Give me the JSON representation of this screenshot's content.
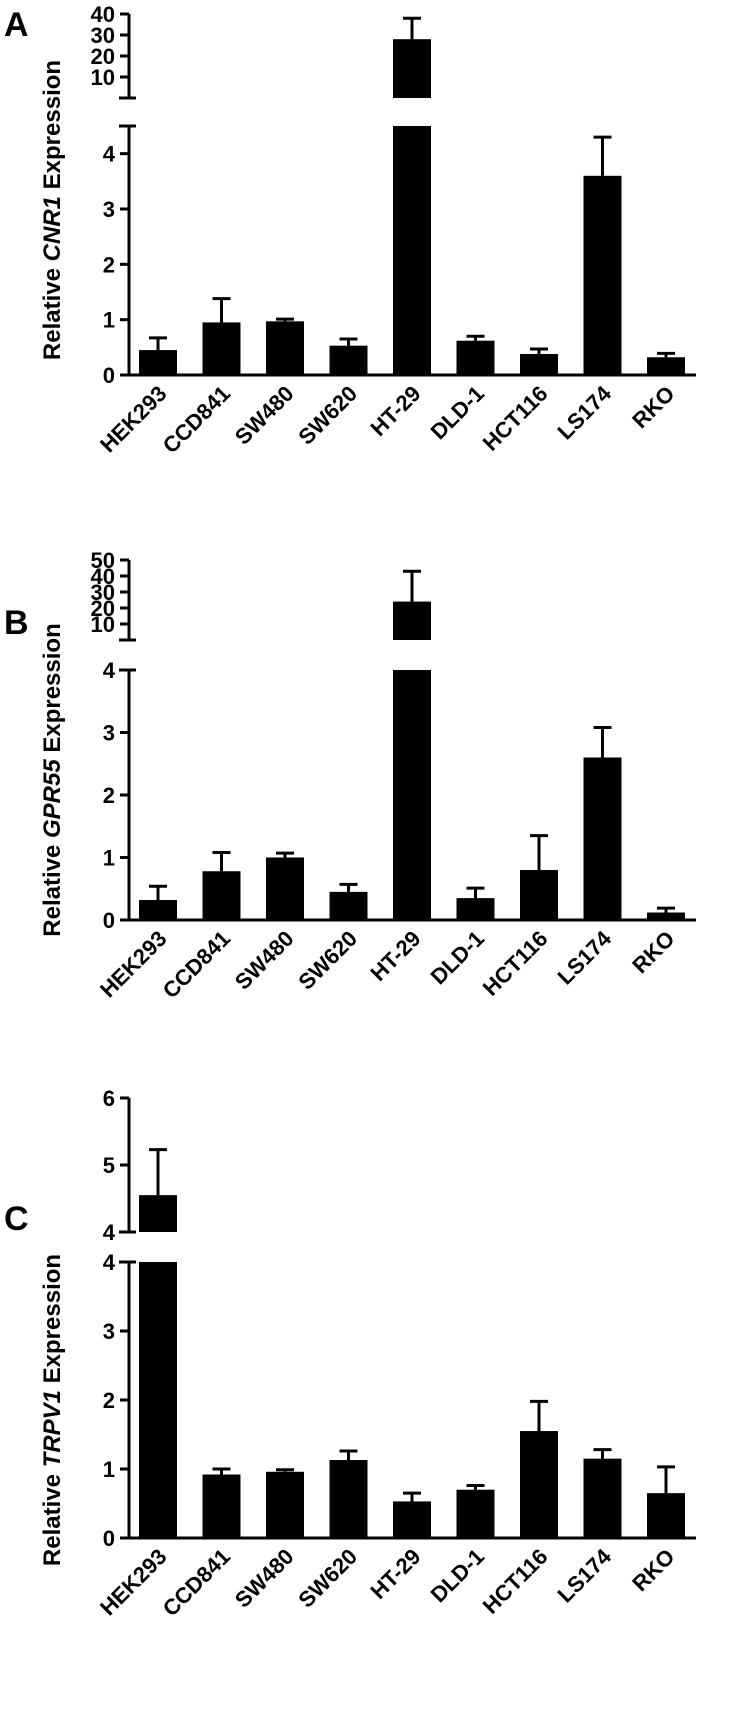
{
  "panels": [
    {
      "letter": "A",
      "ylabel": {
        "prefix": "Relative ",
        "gene": "CNR1",
        "suffix": " Expression"
      },
      "chart_data": {
        "type": "bar",
        "categories": [
          "HEK293",
          "CCD841",
          "SW480",
          "SW620",
          "HT-29",
          "DLD-1",
          "HCT116",
          "LS174",
          "RKO"
        ],
        "values": [
          0.45,
          0.95,
          0.97,
          0.53,
          28,
          0.62,
          0.38,
          3.6,
          0.32
        ],
        "errors": [
          0.22,
          0.43,
          0.04,
          0.12,
          10,
          0.08,
          0.09,
          0.7,
          0.07
        ],
        "axis_break": true,
        "ylim_lower": [
          0,
          4.5
        ],
        "yticks_lower": [
          "0",
          "1",
          "2",
          "3",
          "4"
        ],
        "ylim_upper": [
          0,
          40
        ],
        "yticks_upper": [
          "10",
          "20",
          "30",
          "40"
        ]
      }
    },
    {
      "letter": "B",
      "ylabel": {
        "prefix": "Relative ",
        "gene": "GPR55",
        "suffix": " Expression"
      },
      "chart_data": {
        "type": "bar",
        "categories": [
          "HEK293",
          "CCD841",
          "SW480",
          "SW620",
          "HT-29",
          "DLD-1",
          "HCT116",
          "LS174",
          "RKO"
        ],
        "values": [
          0.32,
          0.78,
          1.0,
          0.45,
          24,
          0.35,
          0.8,
          2.6,
          0.12
        ],
        "errors": [
          0.22,
          0.3,
          0.07,
          0.12,
          19,
          0.16,
          0.55,
          0.48,
          0.07
        ],
        "axis_break": true,
        "ylim_lower": [
          0,
          4
        ],
        "yticks_lower": [
          "0",
          "1",
          "2",
          "3",
          "4"
        ],
        "ylim_upper": [
          0,
          50
        ],
        "yticks_upper": [
          "10",
          "20",
          "30",
          "40",
          "50"
        ]
      }
    },
    {
      "letter": "C",
      "ylabel": {
        "prefix": "Relative ",
        "gene": "TRPV1",
        "suffix": " Expression"
      },
      "chart_data": {
        "type": "bar",
        "categories": [
          "HEK293",
          "CCD841",
          "SW480",
          "SW620",
          "HT-29",
          "DLD-1",
          "HCT116",
          "LS174",
          "RKO"
        ],
        "values": [
          4.55,
          0.92,
          0.96,
          1.13,
          0.53,
          0.7,
          1.55,
          1.15,
          0.65
        ],
        "errors": [
          0.68,
          0.08,
          0.03,
          0.13,
          0.12,
          0.06,
          0.43,
          0.13,
          0.38
        ],
        "axis_break": true,
        "ylim_lower": [
          0,
          4
        ],
        "yticks_lower": [
          "0",
          "1",
          "2",
          "3",
          "4"
        ],
        "ylim_upper": [
          4,
          6
        ],
        "yticks_upper": [
          "4",
          "5",
          "6"
        ]
      }
    }
  ]
}
